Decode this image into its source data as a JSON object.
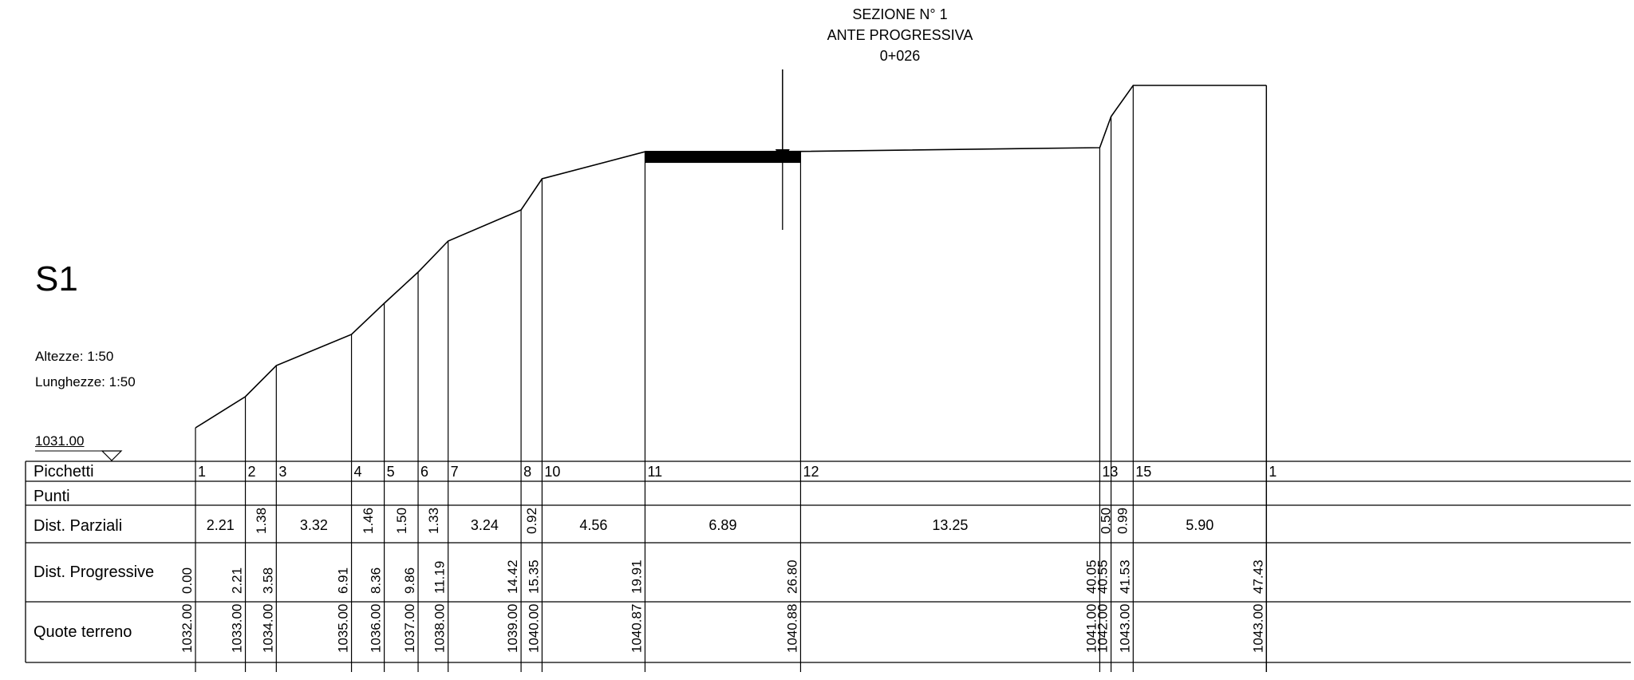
{
  "header": {
    "line1": "SEZIONE N° 1",
    "line2": "ANTE PROGRESSIVA",
    "line3": "0+026"
  },
  "sheet_label": "S1",
  "scales": {
    "heights": "Altezze: 1:50",
    "lengths": "Lunghezze: 1:50"
  },
  "datum_level": "1031.00",
  "table_rows": {
    "picchetti": "Picchetti",
    "punti": "Punti",
    "dist_parziali": "Dist. Parziali",
    "dist_progressive": "Dist. Progressive",
    "quote_terreno": "Quote terreno"
  },
  "colors": {
    "ink": "#000000",
    "background": "#ffffff"
  },
  "chart_data": {
    "type": "line",
    "x_unit": "m",
    "y_unit": "m",
    "datum": 1031.0,
    "profile": [
      {
        "stake": "1",
        "x": 0.0,
        "z": 1032.0
      },
      {
        "stake": "2",
        "x": 2.21,
        "z": 1033.0
      },
      {
        "stake": "3",
        "x": 3.58,
        "z": 1034.0
      },
      {
        "stake": "4",
        "x": 6.91,
        "z": 1035.0
      },
      {
        "stake": "5",
        "x": 8.36,
        "z": 1036.0
      },
      {
        "stake": "6",
        "x": 9.86,
        "z": 1037.0
      },
      {
        "stake": "7",
        "x": 11.19,
        "z": 1038.0
      },
      {
        "stake": "8",
        "x": 14.42,
        "z": 1039.0
      },
      {
        "stake": "10",
        "x": 15.35,
        "z": 1040.0
      },
      {
        "stake": "11",
        "x": 19.91,
        "z": 1040.87
      },
      {
        "stake": "12",
        "x": 26.8,
        "z": 1040.88
      },
      {
        "stake": "13",
        "x": 40.05,
        "z": 1041.0
      },
      {
        "stake": "",
        "x": 40.55,
        "z": 1042.0
      },
      {
        "stake": "15",
        "x": 41.53,
        "z": 1043.0
      },
      {
        "stake": "1",
        "x": 47.43,
        "z": 1043.0
      }
    ],
    "partial_distances": [
      "2.21",
      "1.38",
      "3.32",
      "1.46",
      "1.50",
      "1.33",
      "3.24",
      "0.92",
      "4.56",
      "6.89",
      "13.25",
      "0.50",
      "0.99",
      "5.90"
    ],
    "progressive_labels": [
      "0.00",
      "2.21",
      "3.58",
      "6.91",
      "8.36",
      "9.86",
      "11.19",
      "14.42",
      "15.35",
      "19.91",
      "26.80",
      "40.05",
      "40.55",
      "41.53",
      "47.43"
    ],
    "elevation_labels": [
      "1032.00",
      "1033.00",
      "1034.00",
      "1035.00",
      "1036.00",
      "1037.00",
      "1038.00",
      "1039.00",
      "1040.00",
      "1040.87",
      "1040.88",
      "1041.00",
      "1042.00",
      "1043.00",
      "1043.00"
    ],
    "section_marker_x": 26.0,
    "road_band": {
      "x_start": 19.91,
      "x_end": 26.8
    }
  }
}
